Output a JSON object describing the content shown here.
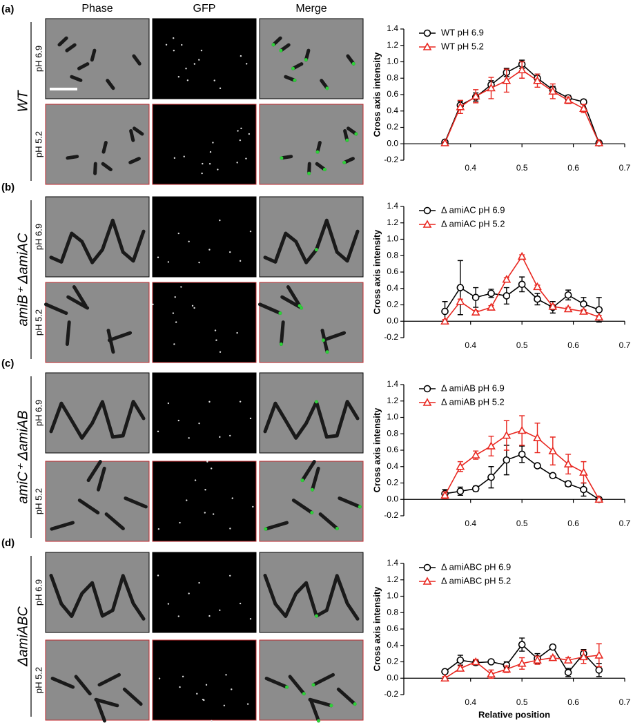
{
  "figure": {
    "columns": [
      "Phase",
      "GFP",
      "Merge"
    ],
    "panels": [
      {
        "letter": "(a)",
        "strain": "WT",
        "rows": [
          "pH 6.9",
          "pH 5.2"
        ]
      },
      {
        "letter": "(b)",
        "strain": "amiB⁺ ΔamiAC",
        "rows": [
          "pH 6.9",
          "pH 5.2"
        ]
      },
      {
        "letter": "(c)",
        "strain": "amiC⁺ ΔamiAB",
        "rows": [
          "pH 6.9",
          "pH 5.2"
        ]
      },
      {
        "letter": "(d)",
        "strain": "ΔamiABC",
        "rows": [
          "pH 6.9",
          "pH 5.2"
        ]
      }
    ]
  },
  "chart_data": [
    {
      "type": "line",
      "ylabel": "Cross axis intensity",
      "x": [
        0.35,
        0.38,
        0.41,
        0.44,
        0.47,
        0.5,
        0.53,
        0.56,
        0.59,
        0.62,
        0.65
      ],
      "xlim": [
        0.27,
        0.7
      ],
      "xticks": [
        0.4,
        0.5,
        0.6,
        0.7
      ],
      "ylim": [
        -0.2,
        1.4
      ],
      "yticks": [
        -0.2,
        {
          "value": 0,
          "label": "0.0"
        },
        0.2,
        0.4,
        0.6,
        0.8,
        {
          "value": 1,
          "label": "1.0"
        },
        1.2,
        1.4
      ],
      "legend": "top-left",
      "series": [
        {
          "name": "WT pH 6.9",
          "color": "#000000",
          "marker": "circle",
          "values": [
            0.02,
            0.47,
            0.57,
            0.72,
            0.87,
            0.97,
            0.8,
            0.66,
            0.56,
            0.51,
            0.01
          ],
          "errors": [
            0.02,
            0.05,
            0.05,
            0.05,
            0.05,
            0.05,
            0.05,
            0.04,
            0.03,
            0.03,
            0.01
          ]
        },
        {
          "name": "WT pH 5.2",
          "color": "#e8261f",
          "marker": "triangle",
          "values": [
            0.01,
            0.45,
            0.58,
            0.68,
            0.77,
            0.9,
            0.77,
            0.64,
            0.53,
            0.43,
            0.01
          ],
          "errors": [
            0.01,
            0.08,
            0.08,
            0.13,
            0.14,
            0.1,
            0.08,
            0.09,
            0.04,
            0.05,
            0.01
          ]
        }
      ]
    },
    {
      "type": "line",
      "ylabel": "Cross axis intensity",
      "x": [
        0.35,
        0.38,
        0.41,
        0.44,
        0.47,
        0.5,
        0.53,
        0.56,
        0.59,
        0.62,
        0.65
      ],
      "xlim": [
        0.27,
        0.7
      ],
      "xticks": [
        0.4,
        0.5,
        0.6,
        0.7
      ],
      "ylim": [
        -0.2,
        1.4
      ],
      "yticks": [
        -0.2,
        {
          "value": 0,
          "label": "0.0"
        },
        0.2,
        0.4,
        0.6,
        0.8,
        {
          "value": 1,
          "label": "1.0"
        },
        1.2,
        1.4
      ],
      "legend": "top-left",
      "series": [
        {
          "name": "Δ amiAC pH 6.9",
          "color": "#000000",
          "marker": "circle",
          "values": [
            0.12,
            0.41,
            0.29,
            0.34,
            0.31,
            0.45,
            0.27,
            0.17,
            0.32,
            0.21,
            0.14
          ],
          "errors": [
            0.12,
            0.33,
            0.12,
            0.05,
            0.1,
            0.09,
            0.07,
            0.07,
            0.06,
            0.08,
            0.15
          ]
        },
        {
          "name": "Δ amiAC pH 5.2",
          "color": "#e8261f",
          "marker": "triangle",
          "values": [
            0,
            0.24,
            0.11,
            0.17,
            0.51,
            0.79,
            0.42,
            0.18,
            0.15,
            0.12,
            0.05
          ],
          "errors": [
            0.02,
            0.03,
            0.02,
            0.02,
            0.02,
            0.02,
            0.02,
            0.02,
            0.02,
            0.02,
            0.02
          ]
        }
      ]
    },
    {
      "type": "line",
      "ylabel": "Cross axis intensity",
      "x": [
        0.35,
        0.38,
        0.41,
        0.44,
        0.47,
        0.5,
        0.53,
        0.56,
        0.59,
        0.62,
        0.65
      ],
      "xlim": [
        0.27,
        0.7
      ],
      "xticks": [
        0.4,
        0.5,
        0.6,
        0.7
      ],
      "ylim": [
        -0.2,
        1.4
      ],
      "yticks": [
        -0.2,
        {
          "value": 0,
          "label": "0.0"
        },
        0.2,
        0.4,
        0.6,
        0.8,
        {
          "value": 1,
          "label": "1.0"
        },
        1.2,
        1.4
      ],
      "legend": "top-left",
      "series": [
        {
          "name": "Δ amiAB pH 6.9",
          "color": "#000000",
          "marker": "circle",
          "values": [
            0.07,
            0.1,
            0.13,
            0.27,
            0.48,
            0.55,
            0.41,
            0.29,
            0.19,
            0.12,
            0
          ],
          "errors": [
            0.05,
            0.05,
            0.03,
            0.13,
            0.18,
            0.1,
            0.02,
            0.02,
            0.03,
            0.08,
            0.01
          ]
        },
        {
          "name": "Δ amiAB pH 5.2",
          "color": "#e8261f",
          "marker": "triangle",
          "values": [
            0.05,
            0.4,
            0.54,
            0.65,
            0.78,
            0.84,
            0.75,
            0.59,
            0.43,
            0.33,
            0
          ],
          "errors": [
            0.04,
            0.06,
            0.05,
            0.12,
            0.18,
            0.18,
            0.18,
            0.17,
            0.12,
            0.13,
            0.01
          ]
        }
      ]
    },
    {
      "type": "line",
      "ylabel": "Cross axis intensity",
      "xlabel": "Relative position",
      "x": [
        0.35,
        0.38,
        0.41,
        0.44,
        0.47,
        0.5,
        0.53,
        0.56,
        0.59,
        0.62,
        0.65
      ],
      "xlim": [
        0.27,
        0.7
      ],
      "xticks": [
        0.4,
        0.5,
        0.6,
        0.7
      ],
      "ylim": [
        -0.2,
        1.4
      ],
      "yticks": [
        -0.2,
        {
          "value": 0,
          "label": "0.0"
        },
        0.2,
        0.4,
        0.6,
        0.8,
        {
          "value": 1,
          "label": "1.0"
        },
        1.2,
        1.4
      ],
      "legend": "top-left",
      "series": [
        {
          "name": "Δ amiABC pH 6.9",
          "color": "#000000",
          "marker": "circle",
          "values": [
            0.08,
            0.22,
            0.19,
            0.2,
            0.16,
            0.41,
            0.24,
            0.38,
            0.07,
            0.3,
            0.1
          ],
          "errors": [
            0.02,
            0.06,
            0.03,
            0.02,
            0.04,
            0.08,
            0.06,
            0.02,
            0.05,
            0.05,
            0.08
          ]
        },
        {
          "name": "Δ amiABC pH 5.2",
          "color": "#e8261f",
          "marker": "triangle",
          "values": [
            0,
            0.12,
            0.2,
            0.05,
            0.11,
            0.18,
            0.22,
            0.25,
            0.22,
            0.26,
            0.28
          ],
          "errors": [
            0.02,
            0.03,
            0.03,
            0.05,
            0.04,
            0.07,
            0.05,
            0.02,
            0.03,
            0.08,
            0.14
          ]
        }
      ]
    }
  ]
}
